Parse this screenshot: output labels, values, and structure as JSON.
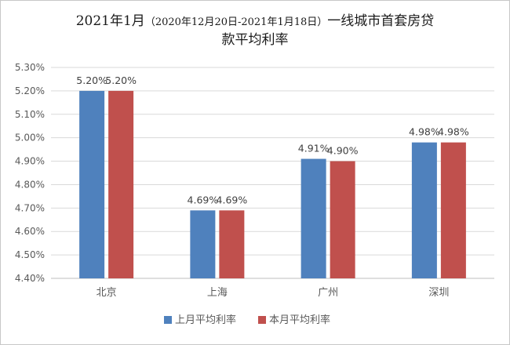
{
  "chart_data": {
    "type": "bar",
    "title_line1_main": "2021年1月",
    "title_line1_paren": "（2020年12月20日-2021年1月18日）",
    "title_line1_tail": "一线城市首套房贷",
    "title_line2": "款平均利率",
    "categories": [
      "北京",
      "上海",
      "广州",
      "深圳"
    ],
    "series": [
      {
        "name": "上月平均利率",
        "color": "#4f81bd",
        "values": [
          5.2,
          4.69,
          4.91,
          4.98
        ],
        "labels": [
          "5.20%",
          "4.69%",
          "4.91%",
          "4.98%"
        ]
      },
      {
        "name": "本月平均利率",
        "color": "#c0504d",
        "values": [
          5.2,
          4.69,
          4.9,
          4.98
        ],
        "labels": [
          "5.20%",
          "4.69%",
          "4.90%",
          "4.98%"
        ]
      }
    ],
    "ylim": [
      4.4,
      5.3
    ],
    "yticks": [
      {
        "value": 4.4,
        "label": "4.40%"
      },
      {
        "value": 4.5,
        "label": "4.50%"
      },
      {
        "value": 4.6,
        "label": "4.60%"
      },
      {
        "value": 4.7,
        "label": "4.70%"
      },
      {
        "value": 4.8,
        "label": "4.80%"
      },
      {
        "value": 4.9,
        "label": "4.90%"
      },
      {
        "value": 5.0,
        "label": "5.00%"
      },
      {
        "value": 5.1,
        "label": "5.10%"
      },
      {
        "value": 5.2,
        "label": "5.20%"
      },
      {
        "value": 5.3,
        "label": "5.30%"
      }
    ],
    "grid": true,
    "legend_position": "bottom",
    "gridline_color": "#d9d9d9"
  }
}
